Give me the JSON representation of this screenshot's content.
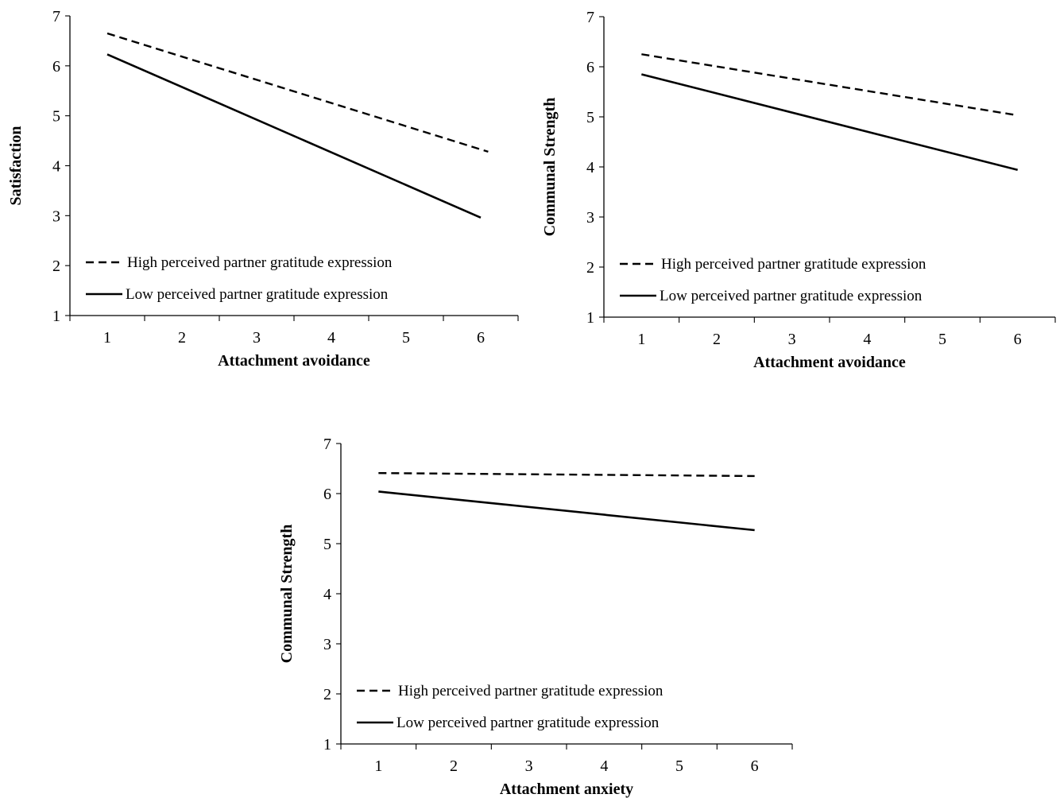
{
  "chart_data": [
    {
      "type": "line",
      "xlabel": "Attachment avoidance",
      "ylabel": "Satisfaction",
      "xlim": [
        0.5,
        6.5
      ],
      "ylim": [
        1,
        7
      ],
      "x_ticks": [
        1,
        2,
        3,
        4,
        5,
        6
      ],
      "y_ticks": [
        1,
        2,
        3,
        4,
        5,
        6,
        7
      ],
      "grid": false,
      "legend": "bottom-left",
      "series": [
        {
          "name": "High perceived partner gratitude expression",
          "style": "dashed",
          "x": [
            1,
            6.1
          ],
          "y": [
            6.65,
            4.28
          ]
        },
        {
          "name": "Low perceived partner gratitude expression",
          "style": "solid",
          "x": [
            1,
            6
          ],
          "y": [
            6.23,
            2.96
          ]
        }
      ]
    },
    {
      "type": "line",
      "xlabel": "Attachment avoidance",
      "ylabel": "Communal Strength",
      "xlim": [
        0.5,
        6.5
      ],
      "ylim": [
        1,
        7
      ],
      "x_ticks": [
        1,
        2,
        3,
        4,
        5,
        6
      ],
      "y_ticks": [
        1,
        2,
        3,
        4,
        5,
        6,
        7
      ],
      "grid": false,
      "legend": "bottom-left",
      "series": [
        {
          "name": "High perceived partner gratitude expression",
          "style": "dashed",
          "x": [
            1,
            6
          ],
          "y": [
            6.25,
            5.03
          ]
        },
        {
          "name": "Low perceived partner gratitude expression",
          "style": "solid",
          "x": [
            1,
            6
          ],
          "y": [
            5.85,
            3.94
          ]
        }
      ]
    },
    {
      "type": "line",
      "xlabel": "Attachment anxiety",
      "ylabel": "Communal Strength",
      "xlim": [
        0.5,
        6.5
      ],
      "ylim": [
        1,
        7
      ],
      "x_ticks": [
        1,
        2,
        3,
        4,
        5,
        6
      ],
      "y_ticks": [
        1,
        2,
        3,
        4,
        5,
        6,
        7
      ],
      "grid": false,
      "legend": "bottom-left",
      "series": [
        {
          "name": "High perceived partner gratitude expression",
          "style": "dashed",
          "x": [
            1,
            6
          ],
          "y": [
            6.41,
            6.35
          ]
        },
        {
          "name": "Low perceived partner gratitude expression",
          "style": "solid",
          "x": [
            1,
            6
          ],
          "y": [
            6.04,
            5.27
          ]
        }
      ]
    }
  ]
}
